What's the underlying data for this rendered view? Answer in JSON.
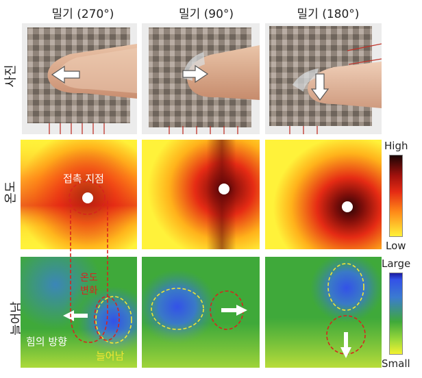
{
  "columns": [
    {
      "label": "밀기 (270°)"
    },
    {
      "label": "밀기 (90°)"
    },
    {
      "label": "밀기 (180°)"
    }
  ],
  "rows": [
    {
      "label": "사진"
    },
    {
      "label": "온도"
    },
    {
      "label": "늘어남"
    }
  ],
  "temperature_scale": {
    "high": "High",
    "low": "Low"
  },
  "stretch_scale": {
    "high": "Large",
    "low": "Small"
  },
  "annotations": {
    "contact_point": "접촉 지점",
    "temp_change_line1": "온도",
    "temp_change_line2": "변화",
    "force_direction": "힘의 방향",
    "stretch": "늘어남"
  },
  "colors": {
    "temp_low": "#fff23a",
    "temp_mid": "#e52b14",
    "temp_high": "#2a0505",
    "stretch_low": "#f3f231",
    "stretch_mid": "#3fa93a",
    "stretch_high": "#3352e8",
    "dashed_red": "#d8231d",
    "dashed_yellow": "#f2e633"
  }
}
